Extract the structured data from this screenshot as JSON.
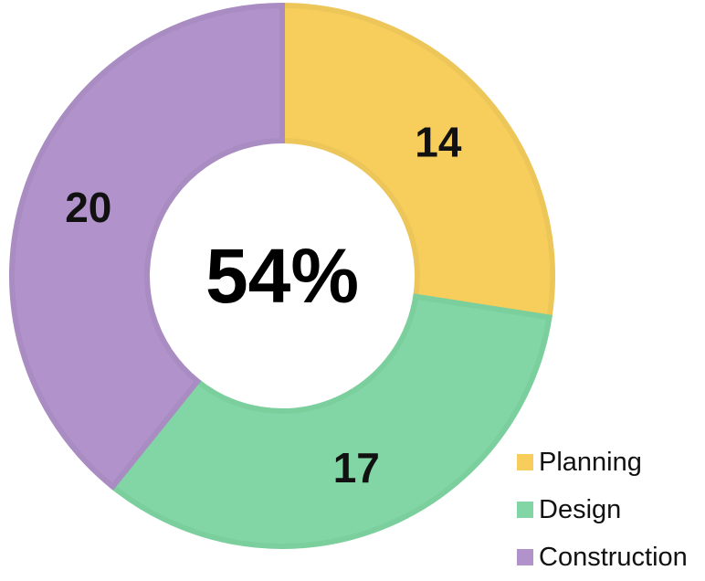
{
  "chart_data": {
    "type": "pie",
    "variant": "donut",
    "categories": [
      "Planning",
      "Design",
      "Construction"
    ],
    "values": [
      14,
      17,
      20
    ],
    "colors": [
      "#f7ce5c",
      "#82d6a5",
      "#b192cb"
    ],
    "border_colors": [
      "#edc65a",
      "#7bcf9d",
      "#a98cc1"
    ],
    "center_label": "54%",
    "title": "",
    "legend": {
      "position": "bottom-right",
      "items": [
        {
          "label": "Planning",
          "color": "#f7ce5c"
        },
        {
          "label": "Design",
          "color": "#82d6a5"
        },
        {
          "label": "Construction",
          "color": "#b192cb"
        }
      ]
    }
  }
}
